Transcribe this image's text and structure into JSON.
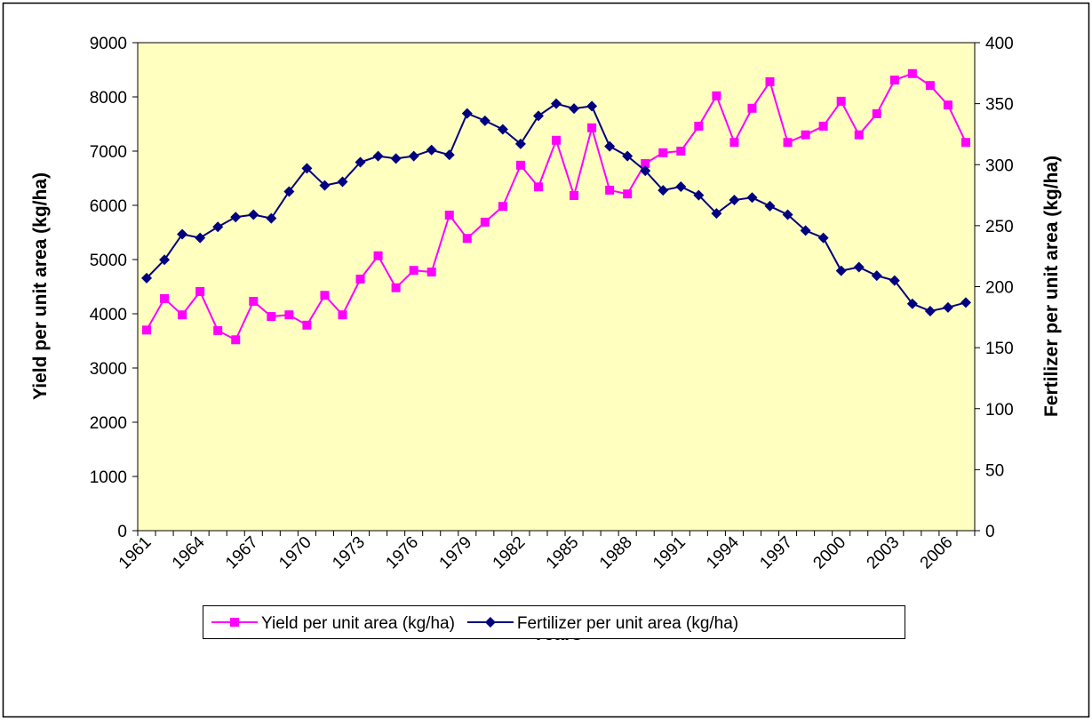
{
  "chart_data": {
    "type": "line",
    "x_label": "Years",
    "y_label": "Yield per unit area (kg/ha)",
    "y2_label": "Fertilizer per unit area (kg/ha)",
    "categories": [
      "1961",
      null,
      null,
      "1964",
      null,
      null,
      "1967",
      null,
      null,
      "1970",
      null,
      null,
      "1973",
      null,
      null,
      "1976",
      null,
      null,
      "1979",
      null,
      null,
      "1982",
      null,
      null,
      "1985",
      null,
      null,
      "1988",
      null,
      null,
      "1991",
      null,
      null,
      "1994",
      null,
      null,
      "1997",
      null,
      null,
      "2000",
      null,
      null,
      "2003",
      null,
      null,
      "2006",
      null
    ],
    "ylim": [
      0,
      9000
    ],
    "yticks": [
      0,
      1000,
      2000,
      3000,
      4000,
      5000,
      6000,
      7000,
      8000,
      9000
    ],
    "y2lim": [
      0,
      400
    ],
    "y2ticks": [
      0,
      50,
      100,
      150,
      200,
      250,
      300,
      350,
      400
    ],
    "legend": "bottom",
    "plot_background": "#ffffc0",
    "series": [
      {
        "name": "Yield per unit area (kg/ha)",
        "color": "#ff00ff",
        "marker": "square",
        "values": [
          3700,
          4280,
          3980,
          4410,
          3690,
          3520,
          4230,
          3950,
          3980,
          3790,
          4340,
          3980,
          4640,
          5070,
          4480,
          4800,
          4770,
          5820,
          5390,
          5690,
          5980,
          6740,
          6340,
          7200,
          6180,
          7430,
          6280,
          6210,
          6770,
          6970,
          7000,
          7460,
          8020,
          7160,
          7790,
          8280,
          7160,
          7300,
          7460,
          7920,
          7300,
          7690,
          8310,
          8430,
          8210,
          7850,
          7160
        ]
      },
      {
        "name": "Fertilizer per unit area (kg/ha)",
        "color": "#000080",
        "marker": "diamond",
        "axis": "y2",
        "values": [
          207,
          222,
          243,
          240,
          249,
          257,
          259,
          256,
          278,
          297,
          283,
          286,
          302,
          307,
          305,
          307,
          312,
          308,
          342,
          336,
          329,
          317,
          340,
          350,
          346,
          348,
          315,
          307,
          295,
          279,
          282,
          275,
          260,
          271,
          273,
          266,
          259,
          246,
          240,
          213,
          216,
          209,
          205,
          186,
          180,
          183,
          187
        ]
      }
    ]
  }
}
